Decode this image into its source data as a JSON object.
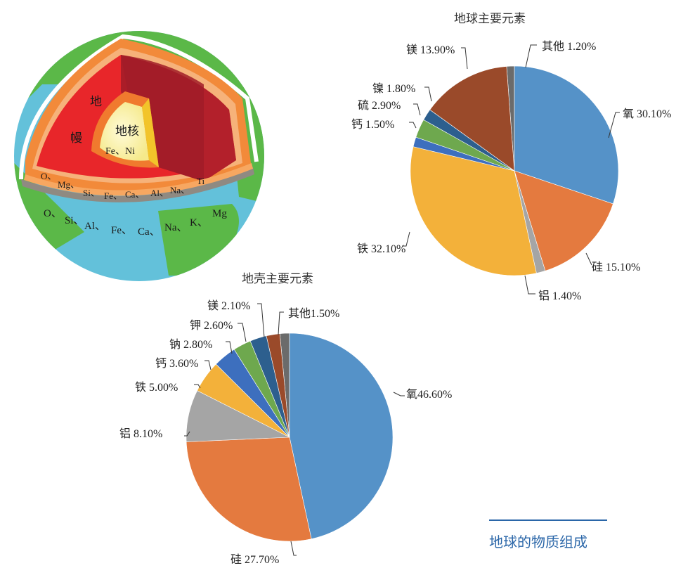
{
  "figure": {
    "caption": "地球的物质组成",
    "globe": {
      "core_label": "地核",
      "core_elements": "Fe、Ni",
      "mantle_label_1": "地",
      "mantle_label_2": "幔",
      "mantle_elements": [
        "O、",
        "Mg、",
        "Si、",
        "Fe、",
        "Ca、",
        "Al、",
        "Na、",
        "Ti"
      ],
      "crust_elements": [
        "O、",
        "Si、",
        "Al、",
        "Fe、",
        "Ca、",
        "Na、",
        "K、",
        "Mg"
      ]
    }
  },
  "chart_data": [
    {
      "type": "pie",
      "title": "地球主要元素",
      "categories": [
        "其他",
        "氧",
        "硅",
        "铝",
        "铁",
        "钙",
        "硫",
        "镍",
        "镁"
      ],
      "values": [
        1.2,
        30.1,
        15.1,
        1.4,
        32.1,
        1.5,
        2.9,
        1.8,
        13.9
      ],
      "labels": [
        "其他 1.20%",
        "氧 30.10%",
        "硅 15.10%",
        "铝 1.40%",
        "铁 32.10%",
        "钙 1.50%",
        "硫 2.90%",
        "镍 1.80%",
        "镁 13.90%"
      ],
      "colors": [
        "#6b6b6b",
        "#5592c8",
        "#e47a3f",
        "#a5a5a5",
        "#f3b13a",
        "#3d6fbe",
        "#6ea84e",
        "#2d5f8e",
        "#9a4a2a"
      ],
      "unit": "%",
      "legend": "none (leader-line labels)"
    },
    {
      "type": "pie",
      "title": "地壳主要元素",
      "categories": [
        "其他",
        "氧",
        "硅",
        "铝",
        "铁",
        "钙",
        "钠",
        "钾",
        "镁"
      ],
      "values": [
        1.5,
        46.6,
        27.7,
        8.1,
        5.0,
        3.6,
        2.8,
        2.6,
        2.1
      ],
      "labels": [
        "其他1.50%",
        "氧46.60%",
        "硅 27.70%",
        "铝 8.10%",
        "铁 5.00%",
        "钙 3.60%",
        "钠 2.80%",
        "钾 2.60%",
        "镁 2.10%"
      ],
      "colors": [
        "#6b6b6b",
        "#5592c8",
        "#e47a3f",
        "#a5a5a5",
        "#f3b13a",
        "#3d6fbe",
        "#6ea84e",
        "#2d5f8e",
        "#9a4a2a"
      ],
      "unit": "%",
      "legend": "none (leader-line labels)"
    }
  ]
}
